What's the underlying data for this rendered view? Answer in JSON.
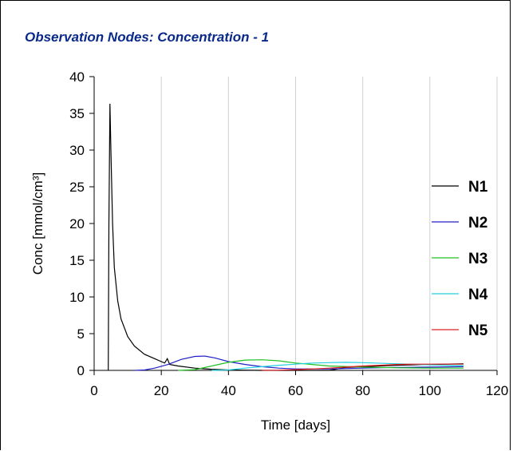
{
  "chart_data": {
    "type": "line",
    "title": "Observation Nodes: Concentration - 1",
    "xlabel": "Time [days]",
    "ylabel": "Conc [mmol/cm³]",
    "xlim": [
      0,
      120
    ],
    "ylim": [
      0,
      40
    ],
    "x_ticks": [
      0,
      20,
      40,
      60,
      80,
      100,
      120
    ],
    "y_ticks": [
      0,
      5,
      10,
      15,
      20,
      25,
      30,
      35,
      40
    ],
    "grid": true,
    "legend_position": "right",
    "series": [
      {
        "name": "N1",
        "color": "#000000",
        "points": [
          [
            4.2,
            0
          ],
          [
            4.4,
            20
          ],
          [
            4.7,
            36.3
          ],
          [
            5,
            30
          ],
          [
            5.5,
            20
          ],
          [
            6,
            14
          ],
          [
            7,
            9.5
          ],
          [
            8,
            7
          ],
          [
            10,
            4.6
          ],
          [
            12,
            3.3
          ],
          [
            15,
            2.2
          ],
          [
            18,
            1.6
          ],
          [
            20,
            1.2
          ],
          [
            21,
            1.0
          ],
          [
            21.8,
            1.6
          ],
          [
            22.5,
            0.8
          ],
          [
            25,
            0.6
          ],
          [
            30,
            0.3
          ],
          [
            35,
            0.15
          ],
          [
            40,
            0.05
          ],
          [
            50,
            0
          ],
          [
            60,
            0
          ],
          [
            70,
            0
          ],
          [
            75,
            0.4
          ],
          [
            80,
            0.5
          ],
          [
            90,
            0.7
          ],
          [
            100,
            0.8
          ],
          [
            110,
            0.9
          ]
        ]
      },
      {
        "name": "N2",
        "color": "#2020c8",
        "points": [
          [
            12,
            0
          ],
          [
            15,
            0.05
          ],
          [
            18,
            0.3
          ],
          [
            22,
            0.8
          ],
          [
            26,
            1.5
          ],
          [
            30,
            1.9
          ],
          [
            33,
            1.95
          ],
          [
            36,
            1.7
          ],
          [
            40,
            1.2
          ],
          [
            45,
            0.8
          ],
          [
            50,
            0.5
          ],
          [
            55,
            0.3
          ],
          [
            60,
            0.2
          ],
          [
            70,
            0.2
          ],
          [
            80,
            0.3
          ],
          [
            90,
            0.4
          ],
          [
            100,
            0.45
          ],
          [
            110,
            0.5
          ]
        ]
      },
      {
        "name": "N3",
        "color": "#20c020",
        "points": [
          [
            25,
            0
          ],
          [
            30,
            0.1
          ],
          [
            35,
            0.6
          ],
          [
            40,
            1.1
          ],
          [
            45,
            1.4
          ],
          [
            50,
            1.45
          ],
          [
            55,
            1.3
          ],
          [
            60,
            1.0
          ],
          [
            65,
            0.8
          ],
          [
            70,
            0.6
          ],
          [
            80,
            0.45
          ],
          [
            90,
            0.35
          ],
          [
            100,
            0.3
          ],
          [
            110,
            0.3
          ]
        ]
      },
      {
        "name": "N4",
        "color": "#20d0e0",
        "points": [
          [
            35,
            0
          ],
          [
            40,
            0.05
          ],
          [
            45,
            0.3
          ],
          [
            50,
            0.5
          ],
          [
            55,
            0.7
          ],
          [
            60,
            0.85
          ],
          [
            65,
            1.0
          ],
          [
            70,
            1.05
          ],
          [
            75,
            1.1
          ],
          [
            80,
            1.05
          ],
          [
            90,
            0.9
          ],
          [
            100,
            0.75
          ],
          [
            110,
            0.65
          ]
        ]
      },
      {
        "name": "N5",
        "color": "#e02020",
        "points": [
          [
            50,
            0
          ],
          [
            55,
            0.02
          ],
          [
            60,
            0.1
          ],
          [
            65,
            0.2
          ],
          [
            70,
            0.3
          ],
          [
            75,
            0.45
          ],
          [
            80,
            0.6
          ],
          [
            85,
            0.7
          ],
          [
            90,
            0.8
          ],
          [
            95,
            0.85
          ],
          [
            100,
            0.85
          ],
          [
            110,
            0.85
          ]
        ]
      }
    ]
  }
}
